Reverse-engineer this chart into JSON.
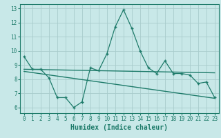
{
  "xlabel": "Humidex (Indice chaleur)",
  "x": [
    0,
    1,
    2,
    3,
    4,
    5,
    6,
    7,
    8,
    9,
    10,
    11,
    12,
    13,
    14,
    15,
    16,
    17,
    18,
    19,
    20,
    21,
    22,
    23
  ],
  "line_main": [
    9.6,
    8.7,
    8.7,
    8.1,
    6.7,
    6.7,
    6.0,
    6.4,
    8.8,
    8.6,
    9.8,
    11.7,
    12.9,
    11.6,
    10.0,
    8.8,
    8.4,
    9.3,
    8.4,
    8.4,
    8.3,
    7.7,
    7.8,
    6.7
  ],
  "trend1_x": [
    0,
    23
  ],
  "trend1_y": [
    8.55,
    6.65
  ],
  "trend2_x": [
    0,
    23
  ],
  "trend2_y": [
    8.7,
    8.45
  ],
  "line_color": "#1e7b6a",
  "bg_color": "#c8e8e8",
  "grid_color": "#a8cccc",
  "ylim_min": 5.6,
  "ylim_max": 13.3,
  "yticks": [
    6,
    7,
    8,
    9,
    10,
    11,
    12,
    13
  ],
  "xticks": [
    0,
    1,
    2,
    3,
    4,
    5,
    6,
    7,
    8,
    9,
    10,
    11,
    12,
    13,
    14,
    15,
    16,
    17,
    18,
    19,
    20,
    21,
    22,
    23
  ]
}
